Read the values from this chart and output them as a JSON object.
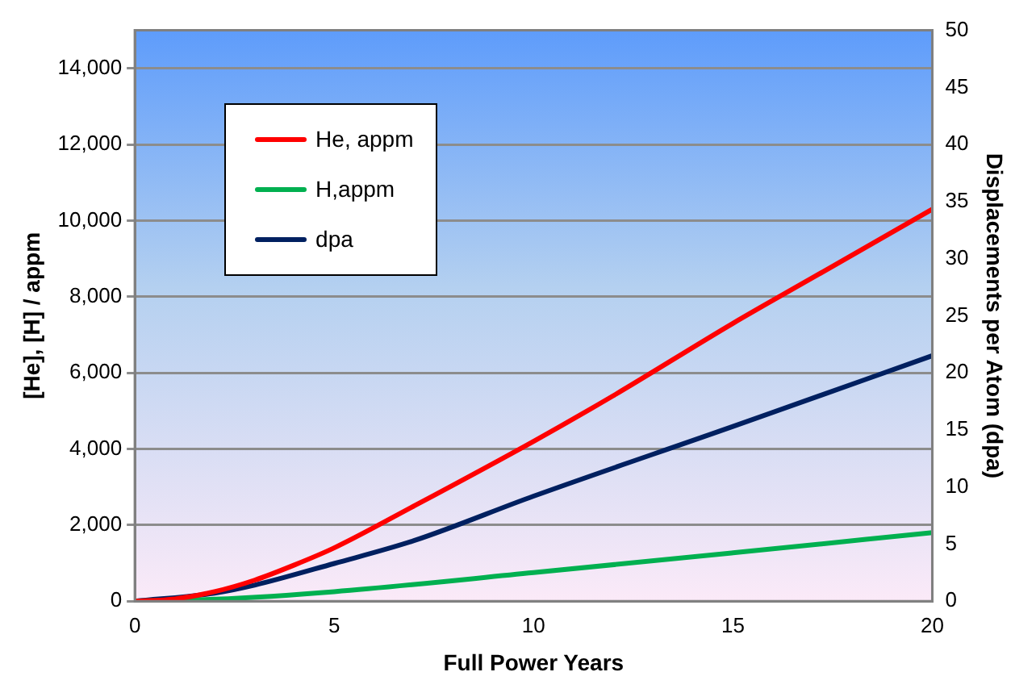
{
  "chart_data": {
    "type": "line",
    "xlabel": "Full Power Years",
    "ylabel": "[He], [H] / appm",
    "y2label": "Displacements per Atom (dpa)",
    "xlim": [
      0,
      20
    ],
    "xticks": [
      0,
      5,
      10,
      15,
      20
    ],
    "ylim": [
      0,
      15000
    ],
    "yticks": [
      {
        "value": 0,
        "label": "0"
      },
      {
        "value": 2000,
        "label": "2,000"
      },
      {
        "value": 4000,
        "label": "4,000"
      },
      {
        "value": 6000,
        "label": "6,000"
      },
      {
        "value": 8000,
        "label": "8,000"
      },
      {
        "value": 10000,
        "label": "10,000"
      },
      {
        "value": 12000,
        "label": "12,000"
      },
      {
        "value": 14000,
        "label": "14,000"
      }
    ],
    "y2lim": [
      0,
      50
    ],
    "y2ticks": [
      0,
      5,
      10,
      15,
      20,
      25,
      30,
      35,
      40,
      45,
      50
    ],
    "grid": "y",
    "legend": "top left",
    "marker": "none",
    "line_style": "solid",
    "series": [
      {
        "name": "He, appm",
        "color": "#ff0000",
        "x": [
          0,
          1,
          2,
          3,
          4,
          5,
          7,
          10,
          12,
          15,
          17,
          20
        ],
        "values": [
          0,
          60,
          250,
          550,
          950,
          1400,
          2500,
          4200,
          5400,
          7300,
          8500,
          10300
        ]
      },
      {
        "name": "H,appm",
        "color": "#00b050",
        "x": [
          0,
          2,
          5,
          10,
          15,
          20
        ],
        "values": [
          0,
          50,
          250,
          750,
          1270,
          1800
        ]
      },
      {
        "name": "dpa",
        "color": "#002060",
        "axis": "y2",
        "x": [
          0,
          2,
          3,
          5,
          7,
          10,
          15,
          20
        ],
        "values": [
          0,
          0.7,
          1.4,
          3.3,
          5.3,
          9.2,
          15.3,
          21.5
        ]
      }
    ]
  }
}
